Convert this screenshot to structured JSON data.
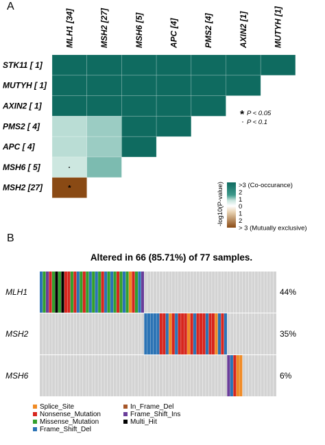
{
  "panel_a": {
    "label": "A",
    "col_labels": [
      "MLH1 [34]",
      "MSH2 [27]",
      "MSH6 [5]",
      "APC [4]",
      "PMS2 [4]",
      "AXIN2 [1]",
      "MUTYH [1]"
    ],
    "row_labels": [
      "STK11 [ 1]",
      "MUTYH [ 1]",
      "AXIN2 [ 1]",
      "PMS2 [ 4]",
      "APC [ 4]",
      "MSH6 [ 5]",
      "MSH2 [27]"
    ],
    "significance": {
      "star_symbol": "*",
      "star_text": "P < 0.05",
      "dot_symbol": "·",
      "dot_text": "P < 0.1"
    },
    "legend": {
      "axis_title": "-log10(P-value)",
      "ticks": [
        ">3 (Co-occurance)",
        "2",
        "1",
        "0",
        "1",
        "2",
        "> 3 (Mutually exclusive)"
      ],
      "colors": {
        "co_strong": "#0f6b60",
        "co_mid": "#3f9a8c",
        "co_light": "#c9e5de",
        "neutral": "#ffffff",
        "ex_light": "#e7d1b0",
        "ex_strong": "#8a4a14"
      }
    }
  },
  "chart_data": [
    {
      "type": "heatmap",
      "title": "",
      "note": "Lower-triangular somatic interaction matrix; values are -log10(P); positive = co-occurrence, negative = mutual exclusivity",
      "rows": [
        "STK11 [ 1]",
        "MUTYH [ 1]",
        "AXIN2 [ 1]",
        "PMS2 [ 4]",
        "APC [ 4]",
        "MSH6 [ 5]",
        "MSH2 [27]"
      ],
      "columns": [
        "MLH1 [34]",
        "MSH2 [27]",
        "MSH6 [5]",
        "APC [4]",
        "PMS2 [4]",
        "AXIN2 [1]",
        "MUTYH [1]"
      ],
      "values": [
        [
          3,
          3,
          3,
          3,
          3,
          3,
          3
        ],
        [
          3,
          3,
          3,
          3,
          3,
          3,
          null
        ],
        [
          3,
          3,
          3,
          3,
          3,
          null,
          null
        ],
        [
          1.6,
          1.8,
          3,
          3,
          null,
          null,
          null
        ],
        [
          1.6,
          1.8,
          3,
          null,
          null,
          null,
          null
        ],
        [
          1.4,
          2,
          null,
          null,
          null,
          null,
          null
        ],
        [
          -3,
          null,
          null,
          null,
          null,
          null,
          null
        ]
      ],
      "markers": [
        {
          "row": "MSH6 [ 5]",
          "column": "MLH1 [34]",
          "symbol": "·"
        },
        {
          "row": "MSH2 [27]",
          "column": "MLH1 [34]",
          "symbol": "*"
        }
      ],
      "legend_range": [
        -3,
        3
      ]
    },
    {
      "type": "heatmap",
      "title": "Altered in 66 (85.71%) of 77 samples.",
      "n_samples": 77,
      "genes": [
        {
          "name": "MLH1",
          "percent": "44%"
        },
        {
          "name": "MSH2",
          "percent": "35%"
        },
        {
          "name": "MSH6",
          "percent": "6%"
        }
      ],
      "background_color": "#d3d3d3",
      "mutation_types": [
        {
          "key": "splice",
          "label": "Splice_Site",
          "color": "#f08a24"
        },
        {
          "key": "nonsense",
          "label": "Nonsense_Mutation",
          "color": "#d7261e"
        },
        {
          "key": "missense",
          "label": "Missense_Mutation",
          "color": "#33a02c"
        },
        {
          "key": "fsdel",
          "label": "Frame_Shift_Del",
          "color": "#2b73b5"
        },
        {
          "key": "ifdel",
          "label": "In_Frame_Del",
          "color": "#a65628"
        },
        {
          "key": "fsins",
          "label": "Frame_Shift_Ins",
          "color": "#6a3d9a"
        },
        {
          "key": "multi",
          "label": "Multi_Hit",
          "color": "#000000"
        }
      ],
      "mlh1_calls": [
        "fsdel",
        "missense",
        "fsins",
        "nonsense",
        "missense",
        "multi",
        "missense",
        "multi",
        "nonsense",
        "nonsense",
        "missense",
        "nonsense",
        "fsdel",
        "missense",
        "nonsense",
        "missense",
        "fsdel",
        "missense",
        "fsdel",
        "missense",
        "nonsense",
        "fsdel",
        "missense",
        "fsdel",
        "missense",
        "nonsense",
        "missense",
        "fsdel",
        "missense",
        "splice",
        "nonsense",
        "missense",
        "fsdel",
        "fsins"
      ],
      "msh2_calls": [
        "fsdel",
        "fsdel",
        "fsdel",
        "fsdel",
        "fsdel",
        "nonsense",
        "nonsense",
        "fsdel",
        "splice",
        "nonsense",
        "fsdel",
        "nonsense",
        "nonsense",
        "nonsense",
        "splice",
        "nonsense",
        "fsdel",
        "nonsense",
        "nonsense",
        "nonsense",
        "fsdel",
        "nonsense",
        "nonsense",
        "splice",
        "fsdel",
        "nonsense",
        "fsdel"
      ],
      "msh6_calls": [
        "fsins",
        "fsdel",
        "nonsense",
        "splice",
        "splice"
      ]
    }
  ]
}
